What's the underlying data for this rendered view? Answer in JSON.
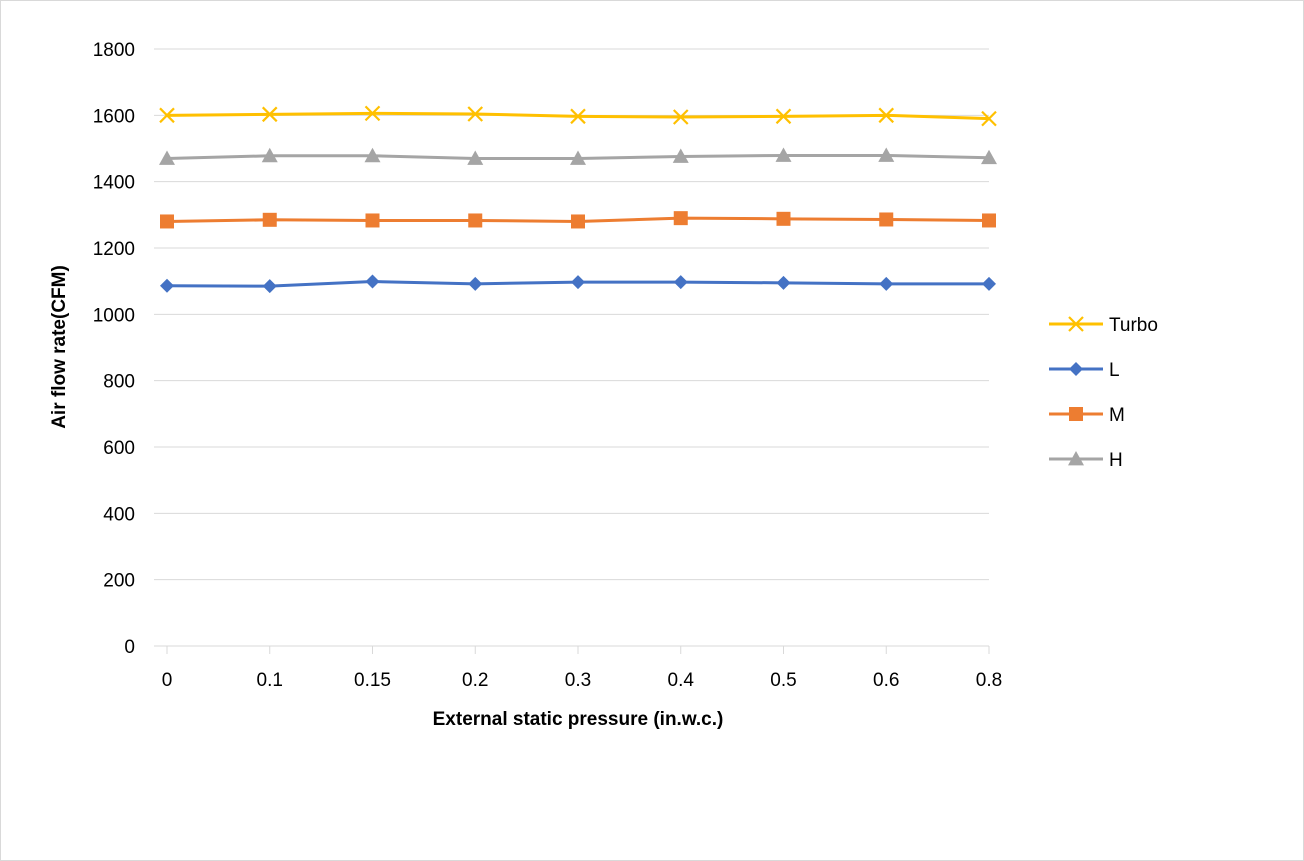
{
  "chart_data": {
    "type": "line",
    "title": "",
    "xlabel": "External static pressure (in.w.c.)",
    "ylabel": "Air flow rate(CFM)",
    "categories": [
      "0",
      "0.1",
      "0.15",
      "0.2",
      "0.3",
      "0.4",
      "0.5",
      "0.6",
      "0.8"
    ],
    "ylim": [
      0,
      1800
    ],
    "yticks": [
      "0",
      "200",
      "400",
      "600",
      "800",
      "1000",
      "1200",
      "1400",
      "1600",
      "1800"
    ],
    "grid": "horizontal",
    "legend_position": "right",
    "series": [
      {
        "name": "Turbo",
        "color": "#FFC000",
        "marker": "x",
        "values": [
          1600,
          1603,
          1606,
          1604,
          1597,
          1595,
          1597,
          1600,
          1590
        ]
      },
      {
        "name": "L",
        "color": "#4472C4",
        "marker": "diamond",
        "values": [
          1086,
          1085,
          1099,
          1092,
          1097,
          1097,
          1095,
          1092,
          1092
        ]
      },
      {
        "name": "M",
        "color": "#ED7D31",
        "marker": "square",
        "values": [
          1280,
          1285,
          1283,
          1283,
          1280,
          1290,
          1288,
          1286,
          1283
        ]
      },
      {
        "name": "H",
        "color": "#A5A5A5",
        "marker": "triangle",
        "values": [
          1470,
          1478,
          1478,
          1470,
          1470,
          1476,
          1479,
          1479,
          1472
        ]
      }
    ]
  }
}
